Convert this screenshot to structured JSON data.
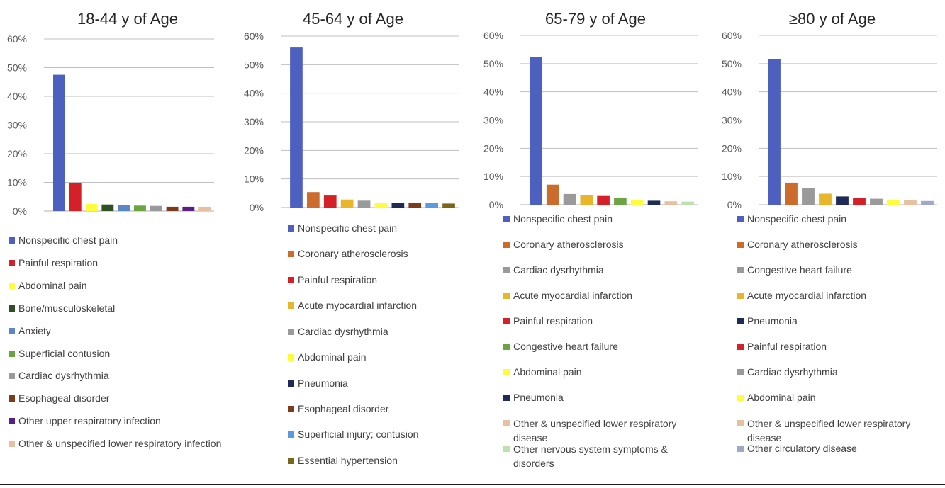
{
  "colors": {
    "nonspecific": "#4d5fbf",
    "painful_resp": "#d42027",
    "abdominal": "#fefc3b",
    "bone": "#2f4f24",
    "anxiety": "#5b87c7",
    "superficial_contusion": "#6aa542",
    "cardiac_dys": "#9a9a9a",
    "esophageal": "#7a3c1a",
    "upper_resp": "#5a1f86",
    "lower_resp": "#e8c0a0",
    "coronary": "#cc6c2c",
    "acute_mi": "#e7b62a",
    "pneumonia": "#1f2a55",
    "superficial_injury": "#5b9ae0",
    "hypertension": "#7a6518",
    "chf": "#6aa542",
    "nervous": "#bfe0b0",
    "circulatory": "#a0a8c8",
    "chf_gray": "#9a9a9a",
    "axis": "#bfbfbf"
  },
  "chart_data": [
    {
      "type": "bar",
      "title": "18-44 y of Age",
      "ylim": [
        0,
        60
      ],
      "yticks": [
        "0%",
        "10%",
        "20%",
        "30%",
        "40%",
        "50%",
        "60%"
      ],
      "grid": true,
      "legend_position": "bottom",
      "categories": [
        "Nonspecific chest pain",
        "Painful respiration",
        "Abdominal pain",
        "Bone/musculoskeletal",
        "Anxiety",
        "Superficial contusion",
        "Cardiac dysrhythmia",
        "Esophageal disorder",
        "Other upper respiratory infection",
        "Other & unspecified lower respiratory infection"
      ],
      "values": [
        47.5,
        9.8,
        2.5,
        2.3,
        2.2,
        1.9,
        1.8,
        1.5,
        1.5,
        1.5
      ],
      "colors": [
        "#4d5fbf",
        "#d42027",
        "#fefc3b",
        "#2f4f24",
        "#5b87c7",
        "#6aa542",
        "#9a9a9a",
        "#7a3c1a",
        "#5a1f86",
        "#e8c0a0"
      ]
    },
    {
      "type": "bar",
      "title": "45-64 y of Age",
      "ylim": [
        0,
        60
      ],
      "yticks": [
        "0%",
        "10%",
        "20%",
        "30%",
        "40%",
        "50%",
        "60%"
      ],
      "grid": true,
      "legend_position": "bottom",
      "categories": [
        "Nonspecific chest pain",
        "Coronary atherosclerosis",
        "Painful respiration",
        "Acute myocardial infarction",
        "Cardiac dysrhythmia",
        "Abdominal pain",
        "Pneumonia",
        "Esophageal disorder",
        "Superficial injury; contusion",
        "Essential hypertension"
      ],
      "values": [
        56,
        5.4,
        4.2,
        2.8,
        2.4,
        1.6,
        1.5,
        1.5,
        1.5,
        1.4
      ],
      "colors": [
        "#4d5fbf",
        "#cc6c2c",
        "#d42027",
        "#e7b62a",
        "#9a9a9a",
        "#fefc3b",
        "#1f2a55",
        "#7a3c1a",
        "#5b9ae0",
        "#7a6518"
      ]
    },
    {
      "type": "bar",
      "title": "65-79 y of Age",
      "ylim": [
        0,
        60
      ],
      "yticks": [
        "0%",
        "10%",
        "20%",
        "30%",
        "40%",
        "50%",
        "60%"
      ],
      "grid": true,
      "legend_position": "bottom",
      "categories": [
        "Nonspecific chest pain",
        "Coronary atherosclerosis",
        "Cardiac dysrhythmia",
        "Acute myocardial infarction",
        "Painful respiration",
        "Congestive heart failure",
        "Abdominal pain",
        "Pneumonia",
        "Other & unspecified lower respiratory disease",
        "Other nervous system symptoms & disorders"
      ],
      "values": [
        52.3,
        7.1,
        3.8,
        3.4,
        3.1,
        2.4,
        1.5,
        1.4,
        1.2,
        1.1
      ],
      "colors": [
        "#4d5fbf",
        "#cc6c2c",
        "#9a9a9a",
        "#e7b62a",
        "#d42027",
        "#6aa542",
        "#fefc3b",
        "#1f2a55",
        "#e8c0a0",
        "#bfe0b0"
      ]
    },
    {
      "type": "bar",
      "title": "≥80 y of Age",
      "ylim": [
        0,
        60
      ],
      "yticks": [
        "0%",
        "10%",
        "20%",
        "30%",
        "40%",
        "50%",
        "60%"
      ],
      "grid": true,
      "legend_position": "bottom",
      "categories": [
        "Nonspecific chest pain",
        "Coronary atherosclerosis",
        "Congestive heart failure",
        "Acute myocardial infarction",
        "Pneumonia",
        "Painful respiration",
        "Cardiac dysrhythmia",
        "Abdominal pain",
        "Other & unspecified lower respiratory disease",
        "Other circulatory disease"
      ],
      "values": [
        51.6,
        7.8,
        5.8,
        3.9,
        2.9,
        2.4,
        2.1,
        1.6,
        1.5,
        1.3
      ],
      "colors": [
        "#4d5fbf",
        "#cc6c2c",
        "#9a9a9a",
        "#e7b62a",
        "#1f2a55",
        "#d42027",
        "#9a9a9a",
        "#fefc3b",
        "#e8c0a0",
        "#a0a8c8"
      ]
    }
  ]
}
